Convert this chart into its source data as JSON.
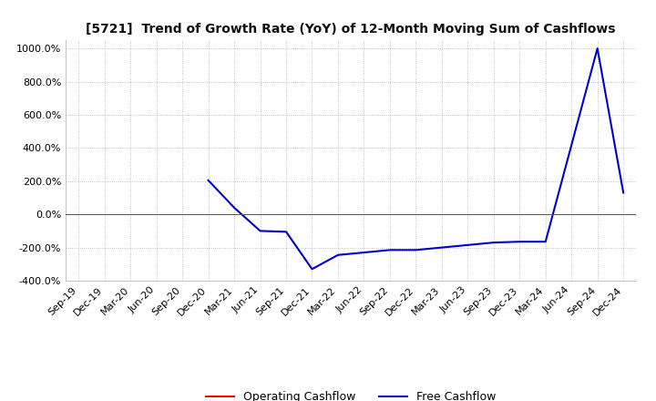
{
  "title": "[5721]  Trend of Growth Rate (YoY) of 12-Month Moving Sum of Cashflows",
  "background_color": "#ffffff",
  "grid_color": "#b0b0b0",
  "ylim": [
    -400,
    1050
  ],
  "yticks": [
    -400,
    -200,
    0,
    200,
    400,
    600,
    800,
    1000
  ],
  "x_labels": [
    "Sep-19",
    "Dec-19",
    "Mar-20",
    "Jun-20",
    "Sep-20",
    "Dec-20",
    "Mar-21",
    "Jun-21",
    "Sep-21",
    "Dec-21",
    "Mar-22",
    "Jun-22",
    "Sep-22",
    "Dec-22",
    "Mar-23",
    "Jun-23",
    "Sep-23",
    "Dec-23",
    "Mar-24",
    "Jun-24",
    "Sep-24",
    "Dec-24"
  ],
  "operating_cashflow": [
    null,
    null,
    null,
    null,
    null,
    null,
    null,
    null,
    null,
    null,
    null,
    null,
    null,
    null,
    null,
    null,
    null,
    null,
    null,
    null,
    null,
    null
  ],
  "free_cashflow": [
    null,
    null,
    null,
    null,
    null,
    205,
    40,
    -100,
    -105,
    -330,
    -245,
    -230,
    -215,
    -215,
    -200,
    -185,
    -170,
    -165,
    -165,
    null,
    1000,
    130
  ],
  "op_color": "#ff0000",
  "free_color": "#0000cc",
  "legend_labels": [
    "Operating Cashflow",
    "Free Cashflow"
  ]
}
